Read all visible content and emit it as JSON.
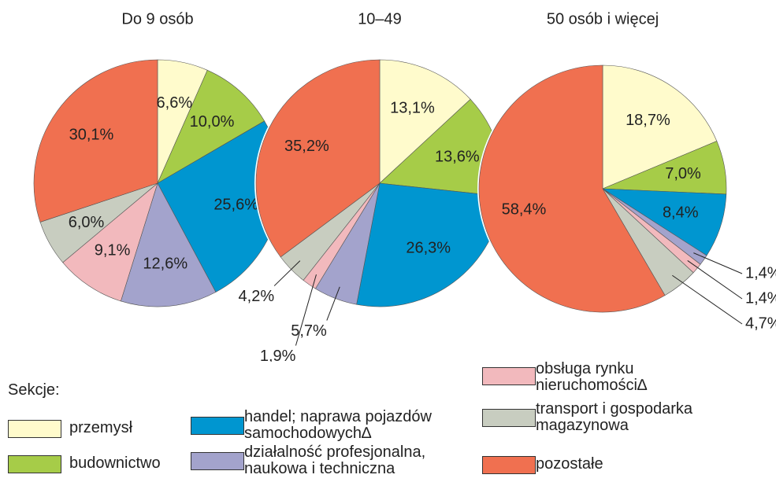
{
  "chart_data": [
    {
      "type": "pie",
      "title": "Do 9 osób",
      "categories": [
        "przemysł",
        "budownictwo",
        "handel; naprawa pojazdów samochodowych∆",
        "działalność profesjonalna, naukowa i techniczna",
        "obsługa rynku nieruchomości∆",
        "transport i gospodarka magazynowa",
        "pozostałe"
      ],
      "values": [
        6.6,
        10.0,
        25.6,
        12.6,
        9.1,
        6.0,
        30.1
      ],
      "value_labels": [
        "6,6%",
        "10,0%",
        "25,6%",
        "12,6%",
        "9,1%",
        "6,0%",
        "30,1%"
      ],
      "colors": [
        "#fffbcc",
        "#a6cc48",
        "#0096d0",
        "#a3a3cc",
        "#f2b9bd",
        "#c8cdc0",
        "#f07050"
      ]
    },
    {
      "type": "pie",
      "title": "10–49",
      "categories": [
        "przemysł",
        "budownictwo",
        "handel; naprawa pojazdów samochodowych∆",
        "działalność profesjonalna, naukowa i techniczna",
        "obsługa rynku nieruchomości∆",
        "transport i gospodarka magazynowa",
        "pozostałe"
      ],
      "values": [
        13.1,
        13.6,
        26.3,
        5.7,
        1.9,
        4.2,
        35.2
      ],
      "value_labels": [
        "13,1%",
        "13,6%",
        "26,3%",
        "5,7%",
        "1,9%",
        "4,2%",
        "35,2%"
      ],
      "colors": [
        "#fffbcc",
        "#a6cc48",
        "#0096d0",
        "#a3a3cc",
        "#f2b9bd",
        "#c8cdc0",
        "#f07050"
      ]
    },
    {
      "type": "pie",
      "title": "50 osób i więcej",
      "categories": [
        "przemysł",
        "budownictwo",
        "handel; naprawa pojazdów samochodowych∆",
        "działalność profesjonalna, naukowa i techniczna",
        "obsługa rynku nieruchomości∆",
        "transport i gospodarka magazynowa",
        "pozostałe"
      ],
      "values": [
        18.7,
        7.0,
        8.4,
        1.4,
        1.4,
        4.7,
        58.4
      ],
      "value_labels": [
        "18,7%",
        "7,0%",
        "8,4%",
        "1,4%",
        "1,4%",
        "4,7%",
        "58,4%"
      ],
      "colors": [
        "#fffbcc",
        "#a6cc48",
        "#0096d0",
        "#a3a3cc",
        "#f2b9bd",
        "#c8cdc0",
        "#f07050"
      ]
    }
  ],
  "legend_title": "Sekcje:"
}
